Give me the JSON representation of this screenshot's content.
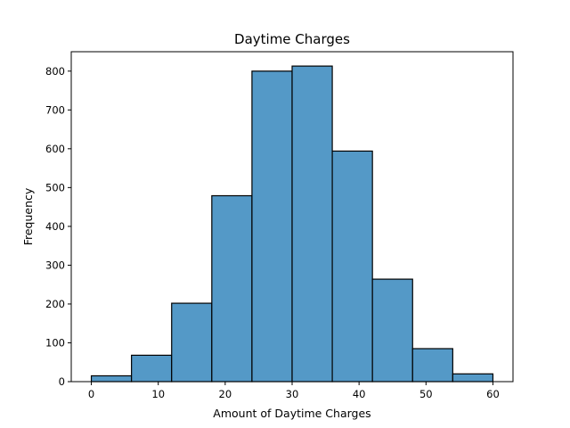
{
  "chart_data": {
    "type": "histogram",
    "title": "Daytime Charges",
    "xlabel": "Amount of Daytime Charges",
    "ylabel": "Frequency",
    "bar_color": "#5499c7",
    "edge_color": "#000000",
    "xlim": [
      -3,
      63
    ],
    "ylim": [
      0,
      850
    ],
    "xticks": [
      0,
      10,
      20,
      30,
      40,
      50,
      60
    ],
    "yticks": [
      0,
      100,
      200,
      300,
      400,
      500,
      600,
      700,
      800
    ],
    "bin_edges": [
      0,
      6,
      12,
      18,
      24,
      30,
      36,
      42,
      48,
      54,
      60
    ],
    "values": [
      15,
      68,
      202,
      479,
      800,
      813,
      594,
      264,
      85,
      20
    ]
  }
}
